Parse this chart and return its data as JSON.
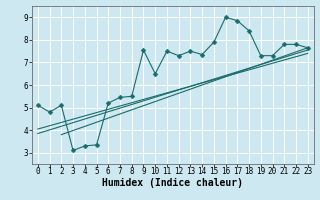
{
  "xlabel": "Humidex (Indice chaleur)",
  "bg_color": "#cde8f0",
  "line_color": "#1a6b6b",
  "grid_color": "#ffffff",
  "xlim": [
    -0.5,
    23.5
  ],
  "ylim": [
    2.5,
    9.5
  ],
  "xticks": [
    0,
    1,
    2,
    3,
    4,
    5,
    6,
    7,
    8,
    9,
    10,
    11,
    12,
    13,
    14,
    15,
    16,
    17,
    18,
    19,
    20,
    21,
    22,
    23
  ],
  "yticks": [
    3,
    4,
    5,
    6,
    7,
    8,
    9
  ],
  "curve1_x": [
    0,
    1,
    2,
    3,
    4,
    5,
    6,
    7,
    8,
    9,
    10,
    11,
    12,
    13,
    14,
    15,
    16,
    17,
    18,
    19,
    20,
    21,
    22,
    23
  ],
  "curve1_y": [
    5.1,
    4.8,
    5.1,
    3.1,
    3.3,
    3.35,
    5.2,
    5.45,
    5.5,
    7.55,
    6.5,
    7.5,
    7.3,
    7.5,
    7.35,
    7.9,
    9.0,
    8.85,
    8.4,
    7.3,
    7.3,
    7.8,
    7.8,
    7.65
  ],
  "line1_x": [
    0,
    23
  ],
  "line1_y": [
    3.85,
    7.55
  ],
  "line2_x": [
    0,
    23
  ],
  "line2_y": [
    4.05,
    7.4
  ],
  "line3_x": [
    2,
    23
  ],
  "line3_y": [
    3.8,
    7.65
  ],
  "marker_size": 2.5,
  "tick_fontsize": 5.5,
  "xlabel_fontsize": 7
}
